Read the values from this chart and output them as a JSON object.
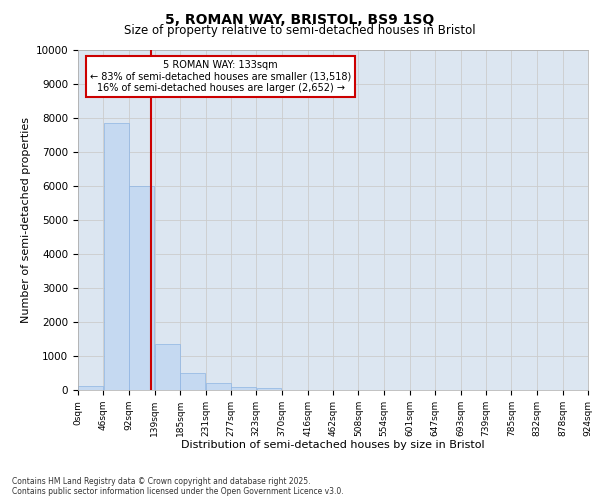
{
  "title": "5, ROMAN WAY, BRISTOL, BS9 1SQ",
  "subtitle": "Size of property relative to semi-detached houses in Bristol",
  "xlabel": "Distribution of semi-detached houses by size in Bristol",
  "ylabel": "Number of semi-detached properties",
  "property_size": 133,
  "property_label": "5 ROMAN WAY: 133sqm",
  "pct_smaller": 83,
  "pct_larger": 16,
  "n_smaller": 13518,
  "n_larger": 2652,
  "bar_color": "#c5d9f1",
  "bar_edge_color": "#8db4e2",
  "vline_color": "#cc0000",
  "annotation_box_color": "#cc0000",
  "grid_color": "#cccccc",
  "background_color": "#dce6f1",
  "footer_text": "Contains HM Land Registry data © Crown copyright and database right 2025.\nContains public sector information licensed under the Open Government Licence v3.0.",
  "bin_edges": [
    0,
    46,
    92,
    139,
    185,
    231,
    277,
    323,
    370,
    416,
    462,
    508,
    554,
    601,
    647,
    693,
    739,
    785,
    832,
    878,
    924
  ],
  "bin_labels": [
    "0sqm",
    "46sqm",
    "92sqm",
    "139sqm",
    "185sqm",
    "231sqm",
    "277sqm",
    "323sqm",
    "370sqm",
    "416sqm",
    "462sqm",
    "508sqm",
    "554sqm",
    "601sqm",
    "647sqm",
    "693sqm",
    "739sqm",
    "785sqm",
    "832sqm",
    "878sqm",
    "924sqm"
  ],
  "counts": [
    130,
    7850,
    6000,
    1350,
    500,
    200,
    100,
    70,
    0,
    0,
    0,
    0,
    0,
    0,
    0,
    0,
    0,
    0,
    0,
    0
  ],
  "ylim": [
    0,
    10000
  ],
  "yticks": [
    0,
    1000,
    2000,
    3000,
    4000,
    5000,
    6000,
    7000,
    8000,
    9000,
    10000
  ]
}
